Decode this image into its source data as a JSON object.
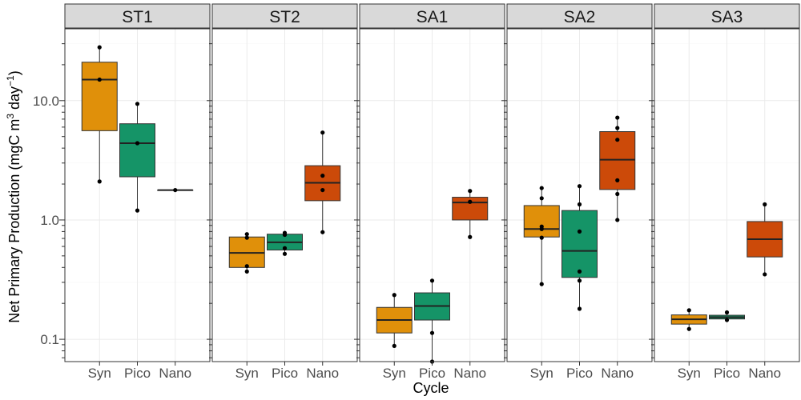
{
  "chart_data": {
    "type": "boxplot",
    "xlabel": "Cycle",
    "ylabel": "Net Primary Production (mgC m^3 day^-1)",
    "ylabel_parts": {
      "main": "Net Primary Production (mgC m",
      "sup1": "3",
      "mid": " day",
      "sup2": "−1",
      "end": ")"
    },
    "y_scale": "log10",
    "ylim": [
      0.065,
      40
    ],
    "y_ticks": [
      0.1,
      1,
      10
    ],
    "y_tick_labels": [
      "0.1",
      "1.0",
      "10.0"
    ],
    "grid": true,
    "categories": [
      "Syn",
      "Pico",
      "Nano"
    ],
    "colors": {
      "Syn": "#E0900A",
      "Pico": "#159467",
      "Nano": "#CC4A09"
    },
    "facets": [
      {
        "name": "ST1",
        "boxes": {
          "Syn": {
            "min": 2.1,
            "q1": 5.6,
            "median": 15.0,
            "q3": 21.0,
            "max": 28.0,
            "points": [
              28.0,
              15.0,
              2.1
            ]
          },
          "Pico": {
            "min": 1.2,
            "q1": 2.3,
            "median": 4.4,
            "q3": 6.4,
            "max": 9.4,
            "points": [
              9.4,
              4.4,
              1.2
            ]
          },
          "Nano": {
            "min": 1.78,
            "q1": 1.78,
            "median": 1.78,
            "q3": 1.78,
            "max": 1.78,
            "points": [
              1.78
            ]
          }
        }
      },
      {
        "name": "ST2",
        "boxes": {
          "Syn": {
            "min": 0.37,
            "q1": 0.4,
            "median": 0.53,
            "q3": 0.72,
            "max": 0.76,
            "points": [
              0.76,
              0.71,
              0.41,
              0.37
            ]
          },
          "Pico": {
            "min": 0.52,
            "q1": 0.56,
            "median": 0.65,
            "q3": 0.76,
            "max": 0.78,
            "points": [
              0.78,
              0.75,
              0.58,
              0.52
            ]
          },
          "Nano": {
            "min": 0.79,
            "q1": 1.45,
            "median": 2.05,
            "q3": 2.85,
            "max": 5.4,
            "points": [
              5.4,
              2.35,
              1.78,
              0.79
            ]
          }
        }
      },
      {
        "name": "SA1",
        "boxes": {
          "Syn": {
            "min": 0.088,
            "q1": 0.113,
            "median": 0.145,
            "q3": 0.185,
            "max": 0.235,
            "points": [
              0.235,
              0.088
            ]
          },
          "Pico": {
            "min": 0.065,
            "q1": 0.145,
            "median": 0.19,
            "q3": 0.245,
            "max": 0.31,
            "points": [
              0.31,
              0.113,
              0.065
            ]
          },
          "Nano": {
            "min": 0.72,
            "q1": 1.0,
            "median": 1.4,
            "q3": 1.55,
            "max": 1.75,
            "points": [
              1.75,
              1.42,
              0.72
            ]
          }
        }
      },
      {
        "name": "SA2",
        "boxes": {
          "Syn": {
            "min": 0.29,
            "q1": 0.72,
            "median": 0.84,
            "q3": 1.32,
            "max": 1.85,
            "points": [
              1.85,
              1.52,
              0.88,
              0.84,
              0.71,
              0.29
            ]
          },
          "Pico": {
            "min": 0.18,
            "q1": 0.33,
            "median": 0.55,
            "q3": 1.2,
            "max": 1.92,
            "points": [
              1.92,
              1.35,
              0.8,
              0.37,
              0.31,
              0.18
            ]
          },
          "Nano": {
            "min": 1.0,
            "q1": 1.8,
            "median": 3.2,
            "q3": 5.5,
            "max": 7.2,
            "points": [
              7.2,
              5.9,
              4.7,
              2.15,
              1.65,
              1.0
            ]
          }
        }
      },
      {
        "name": "SA3",
        "boxes": {
          "Syn": {
            "min": 0.122,
            "q1": 0.134,
            "median": 0.147,
            "q3": 0.16,
            "max": 0.175,
            "points": [
              0.175,
              0.122
            ]
          },
          "Pico": {
            "min": 0.145,
            "q1": 0.148,
            "median": 0.153,
            "q3": 0.159,
            "max": 0.168,
            "points": [
              0.168,
              0.145
            ]
          },
          "Nano": {
            "min": 0.35,
            "q1": 0.49,
            "median": 0.69,
            "q3": 0.97,
            "max": 1.35,
            "points": [
              1.35,
              0.35
            ]
          }
        }
      }
    ]
  }
}
